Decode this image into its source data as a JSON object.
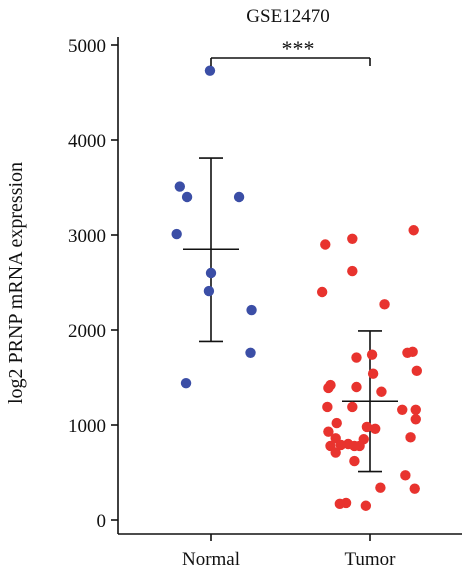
{
  "chart_data": {
    "type": "scatter",
    "title": "GSE12470",
    "ylabel": "log2 PRNP mRNA expression",
    "xlabel": "",
    "ylim": [
      0,
      5000
    ],
    "yticks": [
      0,
      1000,
      2000,
      3000,
      4000,
      5000
    ],
    "categories": [
      "Normal",
      "Tumor"
    ],
    "significance": "***",
    "colors": {
      "Normal": "#3b4ea6",
      "Tumor": "#e8332e",
      "axis": "#111111"
    },
    "groups": [
      {
        "category": "Normal",
        "color": "#3b4ea6",
        "mean": 2850,
        "sd_upper": 3810,
        "sd_lower": 1880,
        "points": [
          {
            "jitter": -0.01,
            "y": 4730
          },
          {
            "jitter": -0.3,
            "y": 3510
          },
          {
            "jitter": -0.23,
            "y": 3400
          },
          {
            "jitter": 0.27,
            "y": 3400
          },
          {
            "jitter": -0.33,
            "y": 3010
          },
          {
            "jitter": 0.0,
            "y": 2600
          },
          {
            "jitter": -0.02,
            "y": 2410
          },
          {
            "jitter": 0.39,
            "y": 2210
          },
          {
            "jitter": 0.38,
            "y": 1760
          },
          {
            "jitter": -0.24,
            "y": 1440
          }
        ]
      },
      {
        "category": "Tumor",
        "color": "#e8332e",
        "mean": 1250,
        "sd_upper": 1990,
        "sd_lower": 510,
        "points": [
          {
            "jitter": -0.43,
            "y": 2900
          },
          {
            "jitter": -0.17,
            "y": 2960
          },
          {
            "jitter": 0.42,
            "y": 3050
          },
          {
            "jitter": -0.17,
            "y": 2620
          },
          {
            "jitter": -0.46,
            "y": 2400
          },
          {
            "jitter": 0.14,
            "y": 2270
          },
          {
            "jitter": 0.36,
            "y": 1760
          },
          {
            "jitter": 0.41,
            "y": 1770
          },
          {
            "jitter": 0.02,
            "y": 1740
          },
          {
            "jitter": -0.13,
            "y": 1710
          },
          {
            "jitter": 0.03,
            "y": 1540
          },
          {
            "jitter": 0.45,
            "y": 1570
          },
          {
            "jitter": -0.38,
            "y": 1420
          },
          {
            "jitter": -0.4,
            "y": 1390
          },
          {
            "jitter": -0.13,
            "y": 1400
          },
          {
            "jitter": 0.11,
            "y": 1350
          },
          {
            "jitter": -0.41,
            "y": 1190
          },
          {
            "jitter": -0.17,
            "y": 1190
          },
          {
            "jitter": 0.31,
            "y": 1160
          },
          {
            "jitter": 0.44,
            "y": 1160
          },
          {
            "jitter": 0.44,
            "y": 1060
          },
          {
            "jitter": -0.32,
            "y": 1020
          },
          {
            "jitter": -0.03,
            "y": 980
          },
          {
            "jitter": 0.05,
            "y": 960
          },
          {
            "jitter": -0.4,
            "y": 930
          },
          {
            "jitter": 0.39,
            "y": 870
          },
          {
            "jitter": -0.33,
            "y": 860
          },
          {
            "jitter": -0.06,
            "y": 850
          },
          {
            "jitter": -0.21,
            "y": 800
          },
          {
            "jitter": -0.28,
            "y": 790
          },
          {
            "jitter": -0.38,
            "y": 780
          },
          {
            "jitter": -0.1,
            "y": 780
          },
          {
            "jitter": -0.15,
            "y": 780
          },
          {
            "jitter": -0.33,
            "y": 710
          },
          {
            "jitter": -0.15,
            "y": 620
          },
          {
            "jitter": 0.34,
            "y": 470
          },
          {
            "jitter": 0.1,
            "y": 340
          },
          {
            "jitter": 0.43,
            "y": 330
          },
          {
            "jitter": -0.23,
            "y": 180
          },
          {
            "jitter": -0.29,
            "y": 170
          },
          {
            "jitter": -0.04,
            "y": 150
          }
        ]
      }
    ]
  }
}
